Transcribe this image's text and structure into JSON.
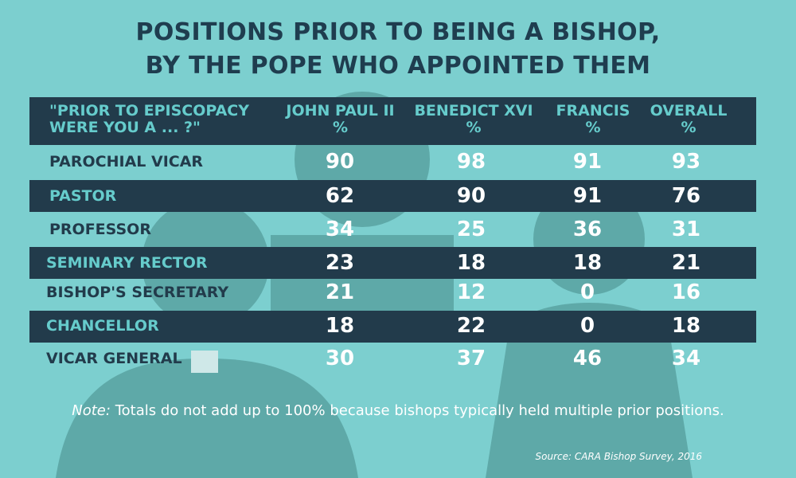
{
  "chart_data": {
    "type": "table",
    "title_lines": [
      "POSITIONS PRIOR TO BEING A BISHOP,",
      "BY THE POPE WHO APPOINTED THEM"
    ],
    "question_header": [
      "\"PRIOR TO EPISCOPACY",
      "WERE YOU A ... ?\""
    ],
    "columns": [
      {
        "name": "JOHN PAUL II",
        "unit": "%"
      },
      {
        "name": "BENEDICT XVI",
        "unit": "%"
      },
      {
        "name": "FRANCIS",
        "unit": "%"
      },
      {
        "name": "OVERALL",
        "unit": "%"
      }
    ],
    "rows": [
      {
        "label": "PAROCHIAL VICAR",
        "values": [
          90,
          98,
          91,
          93
        ]
      },
      {
        "label": "PASTOR",
        "values": [
          62,
          90,
          91,
          76
        ]
      },
      {
        "label": "PROFESSOR",
        "values": [
          34,
          25,
          36,
          31
        ]
      },
      {
        "label": "SEMINARY RECTOR",
        "values": [
          23,
          18,
          18,
          21
        ]
      },
      {
        "label": "BISHOP'S SECRETARY",
        "values": [
          21,
          12,
          0,
          16
        ]
      },
      {
        "label": "CHANCELLOR",
        "values": [
          18,
          22,
          0,
          18
        ]
      },
      {
        "label": "VICAR GENERAL",
        "values": [
          30,
          37,
          46,
          34
        ]
      }
    ]
  },
  "note": {
    "label": "Note:",
    "text": "Totals do not add up to 100% because bishops typically held multiple prior positions."
  },
  "source": "Source: CARA Bishop Survey, 2016",
  "colors": {
    "background": "#7ccfcf",
    "dark_band": "#223b4b",
    "accent_text": "#66cccc",
    "value_text": "#ffffff",
    "silhouette": "#5ea9a8"
  }
}
